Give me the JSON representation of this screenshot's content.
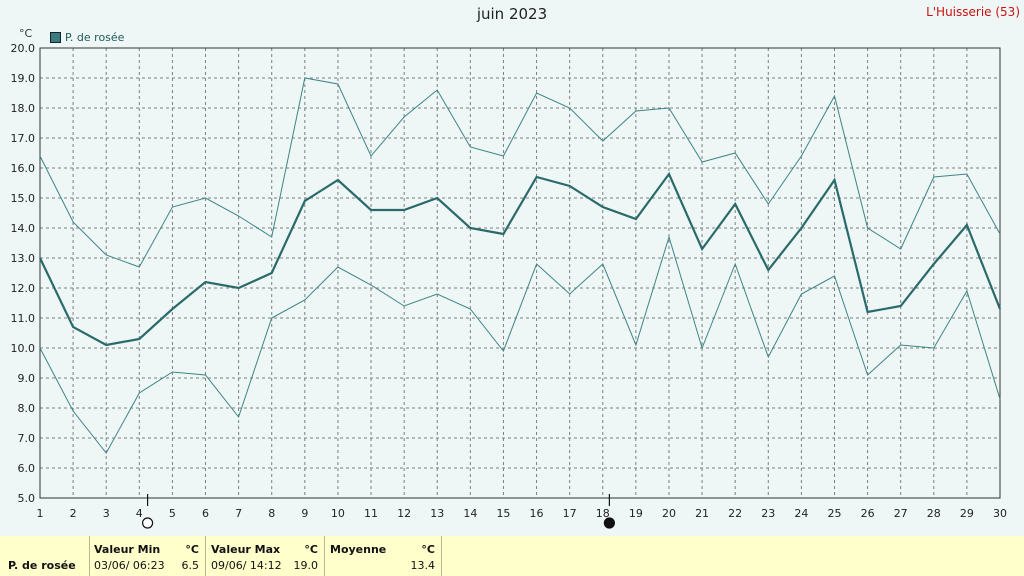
{
  "header": {
    "title": "juin 2023",
    "station": "L'Huisserie (53)",
    "unit": "°C"
  },
  "legend": {
    "label": "P. de rosée",
    "color": "#3a7c7c"
  },
  "stats": {
    "row_label": "P. de rosée",
    "min": {
      "header": "Valeur Min",
      "unit": "°C",
      "date": "03/06/  06:23",
      "value": "6.5"
    },
    "max": {
      "header": "Valeur Max",
      "unit": "°C",
      "date": "09/06/  14:12",
      "value": "19.0"
    },
    "mean": {
      "header": "Moyenne",
      "unit": "°C",
      "value": "13.4"
    }
  },
  "chart_data": {
    "type": "line",
    "title": "juin 2023",
    "ylabel": "°C",
    "ylim": [
      5.0,
      20.0
    ],
    "y_ticks": [
      "5.0",
      "6.0",
      "7.0",
      "8.0",
      "9.0",
      "10.0",
      "11.0",
      "12.0",
      "13.0",
      "14.0",
      "15.0",
      "16.0",
      "17.0",
      "18.0",
      "19.0",
      "20.0"
    ],
    "x": [
      1,
      2,
      3,
      4,
      5,
      6,
      7,
      8,
      9,
      10,
      11,
      12,
      13,
      14,
      15,
      16,
      17,
      18,
      19,
      20,
      21,
      22,
      23,
      24,
      25,
      26,
      27,
      28,
      29,
      30
    ],
    "grid": true,
    "moon_phases": [
      {
        "day": 4.25,
        "phase": "full"
      },
      {
        "day": 18.2,
        "phase": "new"
      }
    ],
    "series": [
      {
        "name": "P. de rosée",
        "role": "max",
        "values": [
          16.4,
          14.2,
          13.1,
          12.7,
          14.7,
          15.0,
          14.4,
          13.7,
          19.0,
          18.8,
          16.4,
          17.7,
          18.6,
          16.7,
          16.4,
          18.5,
          18.0,
          16.9,
          17.9,
          18.0,
          16.2,
          16.5,
          14.8,
          16.4,
          18.4,
          14.0,
          13.3,
          15.7,
          15.8,
          13.8
        ]
      },
      {
        "name": "P. de rosée",
        "role": "mean",
        "values": [
          13.0,
          10.7,
          10.1,
          10.3,
          11.3,
          12.2,
          12.0,
          12.5,
          14.9,
          15.6,
          14.6,
          14.6,
          15.0,
          14.0,
          13.8,
          15.7,
          15.4,
          14.7,
          14.3,
          15.8,
          13.3,
          14.8,
          12.6,
          14.0,
          15.6,
          11.2,
          11.4,
          12.8,
          14.1,
          11.3
        ]
      },
      {
        "name": "P. de rosée",
        "role": "min",
        "values": [
          10.0,
          7.9,
          6.5,
          8.5,
          9.2,
          9.1,
          7.7,
          11.0,
          11.6,
          12.7,
          12.1,
          11.4,
          11.8,
          11.3,
          9.9,
          12.8,
          11.8,
          12.8,
          10.1,
          13.7,
          10.0,
          12.8,
          9.7,
          11.8,
          12.4,
          9.1,
          10.1,
          10.0,
          11.9,
          8.3
        ]
      }
    ]
  }
}
